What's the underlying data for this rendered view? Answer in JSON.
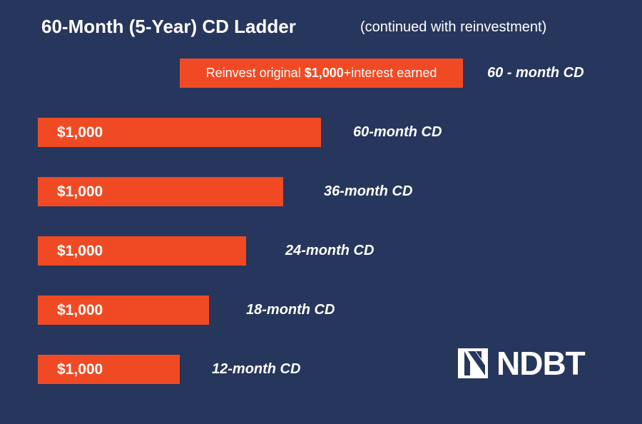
{
  "header": {
    "title": "60-Month (5-Year) CD Ladder",
    "subtitle": "(continued with reinvestment)"
  },
  "reinvest": {
    "text_before": "Reinvest original ",
    "amount": "$1,000",
    "text_after": "+interest earned",
    "term": "60 - month CD"
  },
  "rungs": [
    {
      "amount": "$1,000",
      "term": "60-month CD",
      "months": 60
    },
    {
      "amount": "$1,000",
      "term": "36-month CD",
      "months": 36
    },
    {
      "amount": "$1,000",
      "term": "24-month CD",
      "months": 24
    },
    {
      "amount": "$1,000",
      "term": "18-month CD",
      "months": 18
    },
    {
      "amount": "$1,000",
      "term": "12-month CD",
      "months": 12
    }
  ],
  "logo": {
    "text": "NDBT",
    "icon": "ndbt-logo-icon"
  },
  "colors": {
    "background": "#27365c",
    "bar": "#f04a24",
    "text": "#ffffff"
  }
}
